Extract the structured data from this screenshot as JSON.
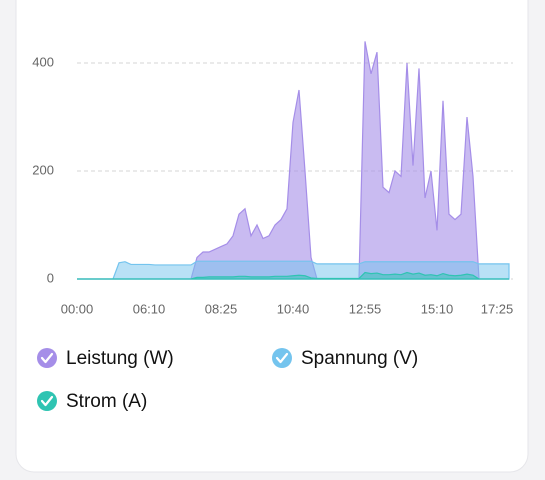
{
  "chart_data": {
    "type": "area",
    "categories": [
      "00:00",
      null,
      null,
      null,
      null,
      null,
      null,
      null,
      null,
      null,
      null,
      null,
      "06:10",
      null,
      null,
      null,
      null,
      null,
      null,
      null,
      null,
      null,
      null,
      null,
      "08:25",
      null,
      null,
      null,
      null,
      null,
      null,
      null,
      null,
      null,
      null,
      null,
      "10:40",
      null,
      null,
      null,
      null,
      null,
      null,
      null,
      null,
      null,
      null,
      null,
      "12:55",
      null,
      null,
      null,
      null,
      null,
      null,
      null,
      null,
      null,
      null,
      null,
      "15:10",
      null,
      null,
      null,
      null,
      null,
      null,
      null,
      null,
      null,
      "17:25",
      null,
      null
    ],
    "series": [
      {
        "name": "Leistung (W)",
        "color": "#a58ee8",
        "values": [
          0,
          0,
          0,
          0,
          0,
          0,
          0,
          0,
          0,
          0,
          0,
          0,
          0,
          0,
          0,
          0,
          0,
          0,
          0,
          0,
          40,
          50,
          50,
          55,
          60,
          65,
          80,
          120,
          130,
          80,
          100,
          75,
          80,
          100,
          110,
          130,
          290,
          350,
          200,
          40,
          0,
          0,
          0,
          0,
          0,
          0,
          0,
          0,
          440,
          380,
          420,
          170,
          160,
          200,
          190,
          400,
          210,
          390,
          150,
          200,
          90,
          330,
          120,
          110,
          120,
          300,
          190,
          0,
          0,
          0,
          0,
          0,
          0
        ]
      },
      {
        "name": "Spannung (V)",
        "color": "#74c4ee",
        "values": [
          0,
          0,
          0,
          0,
          0,
          0,
          0,
          30,
          32,
          27,
          27,
          27,
          27,
          26,
          26,
          26,
          26,
          26,
          26,
          26,
          33,
          33,
          33,
          33,
          33,
          33,
          33,
          33,
          33,
          33,
          33,
          33,
          33,
          33,
          33,
          33,
          33,
          33,
          33,
          33,
          28,
          28,
          28,
          28,
          28,
          28,
          28,
          28,
          32,
          32,
          32,
          32,
          32,
          32,
          32,
          32,
          32,
          32,
          32,
          32,
          32,
          32,
          32,
          32,
          32,
          32,
          32,
          28,
          28,
          28,
          28,
          28,
          28
        ]
      },
      {
        "name": "Strom (A)",
        "color": "#2fc4b2",
        "values": [
          0,
          0,
          0,
          0,
          0,
          0,
          0,
          0,
          0,
          0,
          0,
          0,
          0,
          0,
          0,
          0,
          0,
          0,
          0,
          0,
          3,
          3,
          4,
          4,
          4,
          4,
          4,
          5,
          5,
          4,
          4,
          4,
          4,
          5,
          5,
          5,
          6,
          7,
          6,
          2,
          1,
          1,
          1,
          1,
          1,
          1,
          1,
          1,
          12,
          10,
          11,
          8,
          8,
          9,
          8,
          12,
          9,
          11,
          7,
          8,
          6,
          10,
          7,
          6,
          7,
          9,
          7,
          0,
          0,
          0,
          0,
          0,
          0
        ]
      }
    ],
    "ylim": [
      0,
      450
    ],
    "yticks": [
      0,
      200,
      400
    ],
    "grid": true
  }
}
